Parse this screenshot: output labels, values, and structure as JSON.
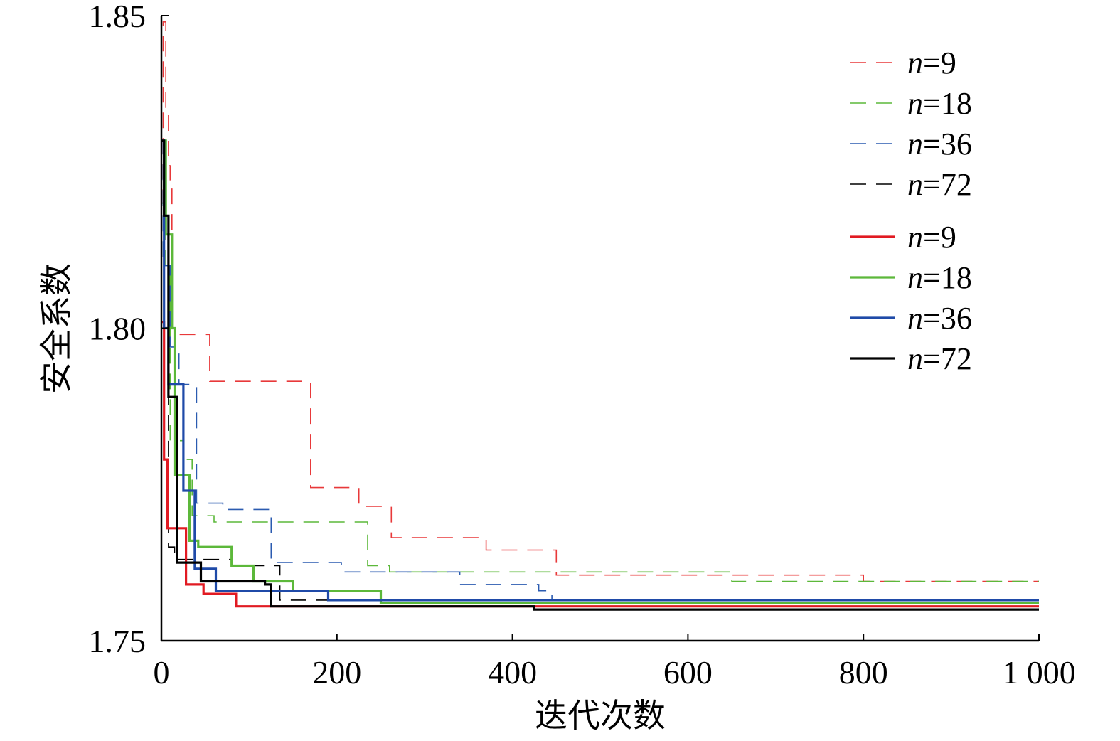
{
  "chart_data": {
    "type": "line",
    "title": "",
    "xlabel": "迭代次数",
    "ylabel": "安全系数",
    "xlim": [
      0,
      1000
    ],
    "ylim": [
      1.75,
      1.85
    ],
    "x_ticks": [
      0,
      200,
      400,
      600,
      800,
      1000
    ],
    "x_tick_labels": [
      "0",
      "200",
      "400",
      "600",
      "800",
      "1 000"
    ],
    "y_ticks": [
      1.75,
      1.8,
      1.85
    ],
    "y_tick_labels": [
      "1.75",
      "1.80",
      "1.85"
    ],
    "legend_position": "top-right",
    "grid": false,
    "series": [
      {
        "name": "n=9",
        "n": "9",
        "style": "dashed",
        "color": "#e8393a",
        "x": [
          0,
          2,
          2,
          5,
          5,
          8,
          8,
          10,
          10,
          12,
          12,
          15,
          15,
          55,
          55,
          170,
          170,
          225,
          225,
          262,
          262,
          370,
          370,
          450,
          450,
          800,
          800,
          1000
        ],
        "y": [
          1.82,
          1.82,
          1.849,
          1.849,
          1.835,
          1.835,
          1.826,
          1.826,
          1.823,
          1.823,
          1.8,
          1.8,
          1.799,
          1.799,
          1.7915,
          1.7915,
          1.7745,
          1.7745,
          1.7715,
          1.7715,
          1.7665,
          1.7665,
          1.7645,
          1.7645,
          1.7605,
          1.7605,
          1.7595,
          1.7595
        ]
      },
      {
        "name": "n=18",
        "n": "18",
        "style": "dashed",
        "color": "#5cb83a",
        "x": [
          0,
          5,
          5,
          10,
          10,
          25,
          25,
          35,
          35,
          60,
          60,
          235,
          235,
          260,
          260,
          650,
          650,
          1000
        ],
        "y": [
          1.82,
          1.82,
          1.81,
          1.81,
          1.782,
          1.782,
          1.779,
          1.779,
          1.77,
          1.77,
          1.769,
          1.769,
          1.762,
          1.762,
          1.761,
          1.761,
          1.7595,
          1.7595
        ]
      },
      {
        "name": "n=36",
        "n": "36",
        "style": "dashed",
        "color": "#2b5bb0",
        "x": [
          0,
          2,
          2,
          10,
          10,
          20,
          20,
          40,
          40,
          70,
          70,
          125,
          125,
          205,
          205,
          340,
          340,
          430,
          430,
          445,
          445,
          1000
        ],
        "y": [
          1.83,
          1.83,
          1.81,
          1.81,
          1.797,
          1.797,
          1.791,
          1.791,
          1.772,
          1.772,
          1.771,
          1.771,
          1.7625,
          1.7625,
          1.761,
          1.761,
          1.759,
          1.759,
          1.758,
          1.758,
          1.7565,
          1.7565
        ]
      },
      {
        "name": "n=72",
        "n": "72",
        "style": "dashed",
        "color": "#000000",
        "x": [
          0,
          3,
          3,
          8,
          8,
          15,
          15,
          30,
          30,
          80,
          80,
          135,
          135,
          465,
          465,
          1000
        ],
        "y": [
          1.83,
          1.83,
          1.8,
          1.8,
          1.765,
          1.765,
          1.763,
          1.763,
          1.763,
          1.763,
          1.762,
          1.762,
          1.7565,
          1.7565,
          1.7565,
          1.7565
        ]
      },
      {
        "name": "n=9",
        "n": "9",
        "style": "solid",
        "color": "#e11a22",
        "x": [
          0,
          3,
          3,
          7,
          7,
          28,
          28,
          48,
          48,
          85,
          85,
          1000
        ],
        "y": [
          1.801,
          1.801,
          1.779,
          1.779,
          1.768,
          1.768,
          1.759,
          1.759,
          1.7575,
          1.7575,
          1.7555,
          1.7555
        ]
      },
      {
        "name": "n=18",
        "n": "18",
        "style": "solid",
        "color": "#5cb83a",
        "x": [
          0,
          5,
          5,
          12,
          12,
          15,
          15,
          32,
          32,
          42,
          42,
          80,
          80,
          105,
          105,
          150,
          150,
          250,
          250,
          1000
        ],
        "y": [
          1.83,
          1.83,
          1.815,
          1.815,
          1.8,
          1.8,
          1.7765,
          1.7765,
          1.766,
          1.766,
          1.765,
          1.765,
          1.762,
          1.762,
          1.7595,
          1.7595,
          1.758,
          1.758,
          1.756,
          1.756
        ]
      },
      {
        "name": "n=36",
        "n": "36",
        "style": "solid",
        "color": "#1f4aa8",
        "x": [
          0,
          3,
          3,
          8,
          8,
          25,
          25,
          38,
          38,
          62,
          62,
          190,
          190,
          1000
        ],
        "y": [
          1.83,
          1.83,
          1.8,
          1.8,
          1.791,
          1.791,
          1.774,
          1.774,
          1.7615,
          1.7615,
          1.758,
          1.758,
          1.7565,
          1.7565
        ]
      },
      {
        "name": "n=72",
        "n": "72",
        "style": "solid",
        "color": "#000000",
        "x": [
          0,
          3,
          3,
          8,
          8,
          18,
          18,
          45,
          45,
          118,
          118,
          125,
          125,
          425,
          425,
          1000
        ],
        "y": [
          1.83,
          1.83,
          1.818,
          1.818,
          1.789,
          1.789,
          1.7625,
          1.7625,
          1.7595,
          1.7595,
          1.759,
          1.759,
          1.7555,
          1.7555,
          1.755,
          1.755
        ]
      }
    ]
  }
}
